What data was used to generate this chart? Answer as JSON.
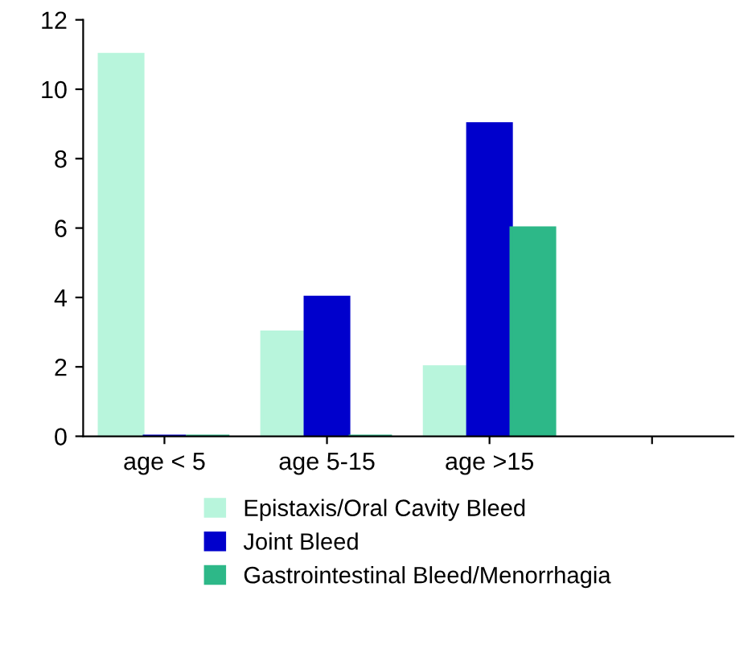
{
  "chart_data": {
    "type": "bar",
    "categories": [
      "age < 5",
      "age 5-15",
      "age >15",
      null
    ],
    "series": [
      {
        "name": "Epistaxis/Oral Cavity Bleed",
        "color": "#b8f5dc",
        "values": [
          11,
          3,
          2,
          null
        ]
      },
      {
        "name": "Joint Bleed",
        "color": "#0000cc",
        "values": [
          0,
          4,
          9,
          null
        ]
      },
      {
        "name": "Gastrointestinal Bleed/Menorrhagia",
        "color": "#2db888",
        "values": [
          0,
          0,
          6,
          null
        ]
      }
    ],
    "ylim": [
      0,
      12
    ],
    "yticks": [
      0,
      2,
      4,
      6,
      8,
      10,
      12
    ],
    "grid": false,
    "legend": "bottom"
  }
}
